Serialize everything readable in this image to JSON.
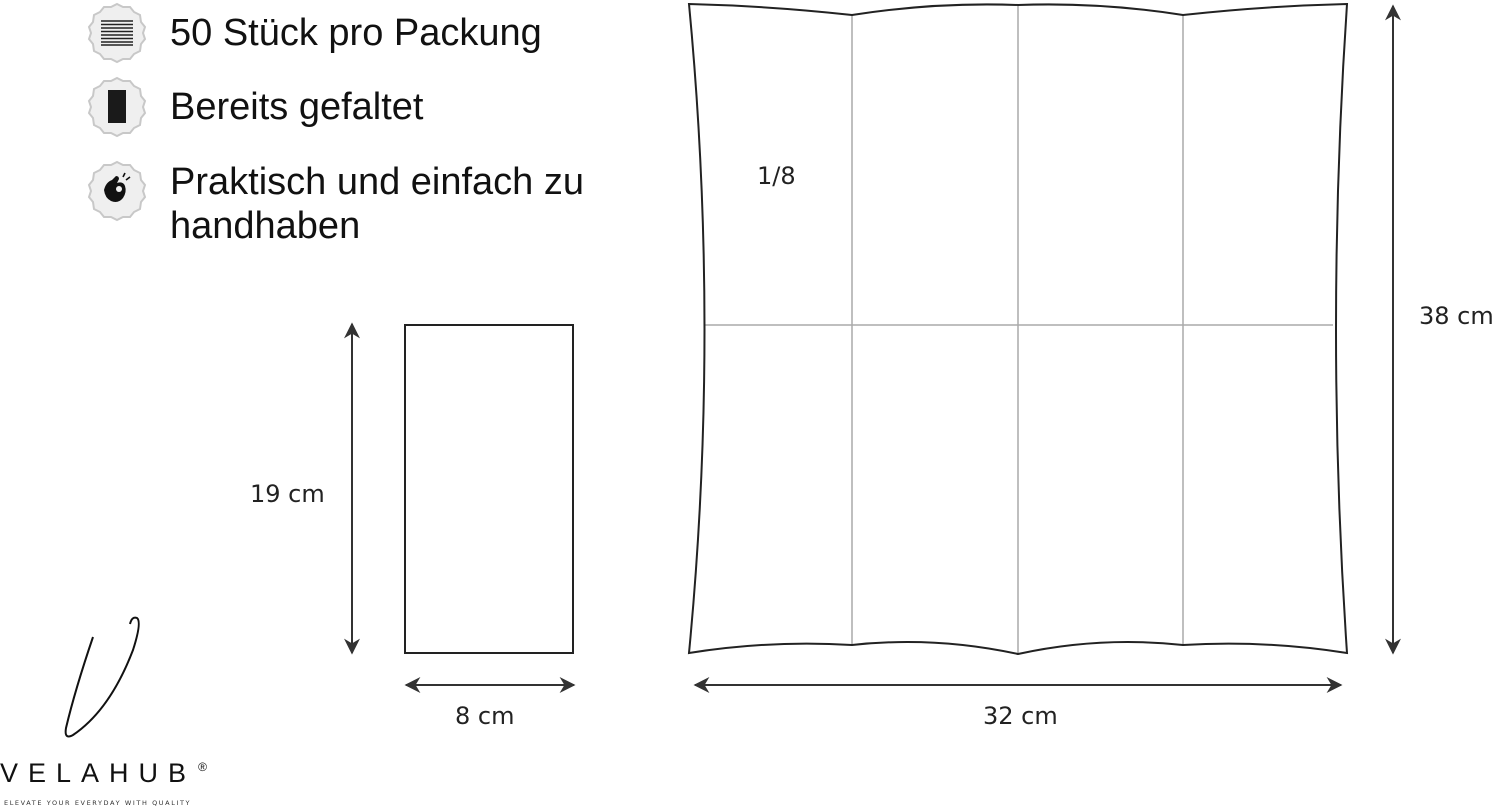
{
  "features": [
    {
      "icon": "stack-icon",
      "text": "50 Stück pro Packung"
    },
    {
      "icon": "folded-napkin-icon",
      "text": "Bereits gefaltet"
    },
    {
      "icon": "ok-hand-icon",
      "text": "Praktisch und einfach zu handhaben"
    }
  ],
  "folded": {
    "height_label": "19 cm",
    "width_label": "8 cm"
  },
  "unfolded": {
    "height_label": "38 cm",
    "width_label": "32 cm",
    "fold_label": "1/8"
  },
  "brand": {
    "name": "VELAHUB",
    "registered": "®",
    "tagline": "ELEVATE YOUR EVERYDAY WITH QUALITY"
  },
  "colors": {
    "outline": "#222222",
    "fold_lines": "#aaaaaa",
    "badge_fill": "#efefef",
    "badge_stroke": "#c8c8c8"
  }
}
